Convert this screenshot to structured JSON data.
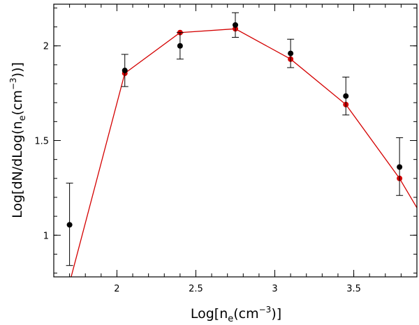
{
  "chart_data": {
    "type": "scatter",
    "xlabel": {
      "pre": "Log[n",
      "sub": "e",
      "mid": "(cm",
      "sup": "−3",
      "post": ")]"
    },
    "ylabel": {
      "pre": "Log[dN/dLog(n",
      "sub": "e",
      "mid": "(cm",
      "sup": "−3",
      "post": "))]"
    },
    "xlim": [
      1.6,
      3.9
    ],
    "ylim": [
      0.78,
      2.22
    ],
    "x_ticks": [
      {
        "value": 2,
        "label": "2"
      },
      {
        "value": 2.5,
        "label": "2.5"
      },
      {
        "value": 3,
        "label": "3"
      },
      {
        "value": 3.5,
        "label": "3.5"
      }
    ],
    "y_ticks": [
      {
        "value": 1,
        "label": "1"
      },
      {
        "value": 1.5,
        "label": "1.5"
      },
      {
        "value": 2,
        "label": "2"
      }
    ],
    "x_minor_step": 0.1,
    "y_minor_step": 0.1,
    "series": [
      {
        "kind": "errorbar",
        "color": "#000000",
        "x": [
          1.7,
          2.05,
          2.4,
          2.75,
          3.1,
          3.45,
          3.79
        ],
        "y": [
          1.055,
          1.87,
          2.0,
          2.11,
          1.96,
          1.735,
          1.36
        ],
        "yerr_lo": [
          0.215,
          0.085,
          0.07,
          0.065,
          0.075,
          0.1,
          0.15
        ],
        "yerr_hi": [
          0.22,
          0.085,
          0.07,
          0.065,
          0.075,
          0.1,
          0.155
        ]
      },
      {
        "kind": "line-markers",
        "color": "#d40000",
        "x": [
          2.05,
          2.4,
          2.75,
          3.1,
          3.45,
          3.79
        ],
        "y": [
          1.855,
          2.07,
          2.09,
          1.93,
          1.69,
          1.3
        ]
      },
      {
        "kind": "line",
        "color": "#d40000",
        "x": [
          1.71,
          2.05,
          2.4,
          2.75,
          3.1,
          3.45,
          3.79,
          3.9
        ],
        "y": [
          0.78,
          1.855,
          2.07,
          2.09,
          1.93,
          1.69,
          1.3,
          1.145
        ]
      }
    ]
  }
}
